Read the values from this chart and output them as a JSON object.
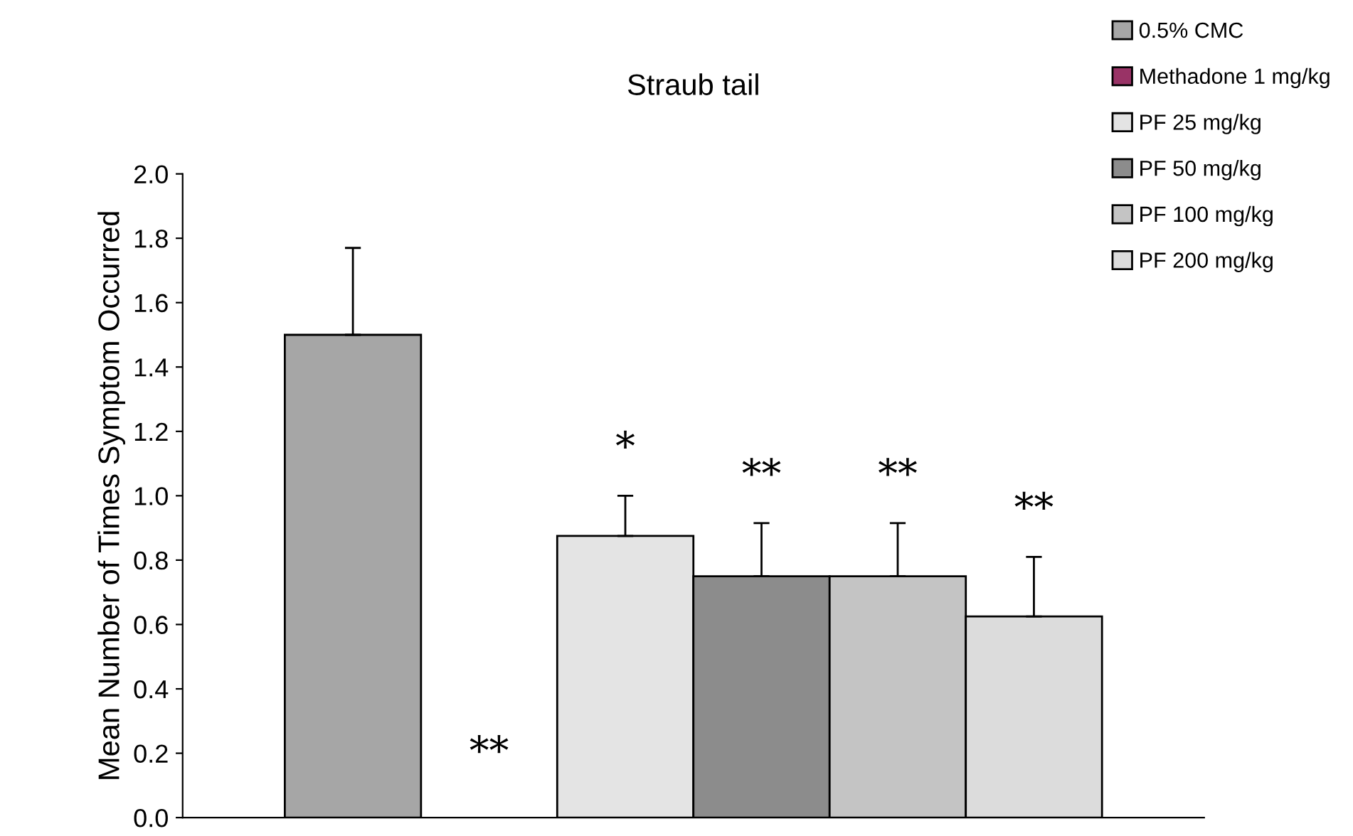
{
  "chart_data": {
    "type": "bar",
    "title": "Straub tail",
    "ylabel": "Mean Number of Times Symptom Occurred",
    "categories": [
      null
    ],
    "series": [
      {
        "name": "0.5% CMC",
        "color": "#a6a6a6",
        "values": [
          1.5
        ],
        "errors": [
          0.27
        ]
      },
      {
        "name": "Methadone 1 mg/kg",
        "color": "#993366",
        "values": [
          0
        ]
      },
      {
        "name": "PF 25 mg/kg",
        "color": "#e4e4e4",
        "values": [
          0.875
        ],
        "errors": [
          0.125
        ],
        "value_labels": [
          "*"
        ]
      },
      {
        "name": "PF 50 mg/kg",
        "color": "#8c8c8c",
        "values": [
          0.75
        ],
        "errors": [
          0.165
        ],
        "value_labels": [
          "**"
        ]
      },
      {
        "name": "PF 100 mg/kg",
        "color": "#c4c4c4",
        "values": [
          0.75
        ],
        "errors": [
          0.165
        ],
        "value_labels": [
          "**"
        ]
      },
      {
        "name": "PF 200 mg/kg",
        "color": "#dcdcdc",
        "values": [
          0.625
        ],
        "errors": [
          0.185
        ],
        "value_labels": [
          "**"
        ]
      }
    ],
    "ylim": [
      0,
      2.0
    ],
    "yticks": [
      {
        "value": 0,
        "label": "0.0"
      },
      {
        "value": 0.2,
        "label": "0.2"
      },
      {
        "value": 0.4,
        "label": "0.4"
      },
      {
        "value": 0.6,
        "label": "0.6"
      },
      {
        "value": 0.8,
        "label": "0.8"
      },
      {
        "value": 1.0,
        "label": "1.0"
      },
      {
        "value": 1.2,
        "label": "1.2"
      },
      {
        "value": 1.4,
        "label": "1.4"
      },
      {
        "value": 1.6,
        "label": "1.6"
      },
      {
        "value": 1.8,
        "label": "1.8"
      },
      {
        "value": 2.0,
        "label": "2.0"
      }
    ],
    "annotations": [
      "**"
    ],
    "grid": false,
    "legend": "top right"
  }
}
